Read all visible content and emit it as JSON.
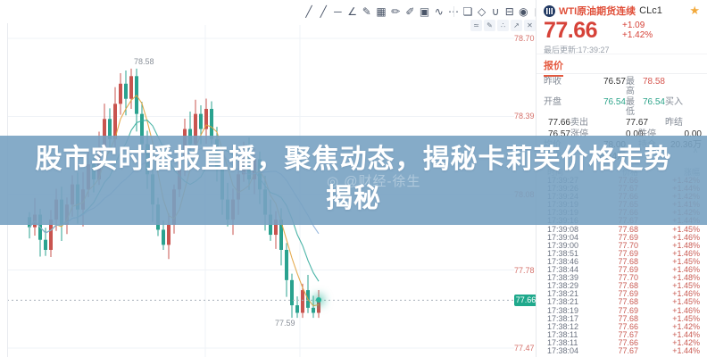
{
  "toolbar": {
    "drawing_tools": [
      {
        "name": "trend-line",
        "glyph": "╱"
      },
      {
        "name": "ray-line",
        "glyph": "╱"
      },
      {
        "name": "horizontal-line",
        "glyph": "─"
      },
      {
        "name": "angle-line",
        "glyph": "∠"
      },
      {
        "name": "pencil",
        "glyph": "✎"
      },
      {
        "name": "fib-grid",
        "glyph": "▦"
      },
      {
        "name": "brush",
        "glyph": "✏"
      },
      {
        "name": "marker",
        "glyph": "✐"
      },
      {
        "name": "image",
        "glyph": "▣"
      },
      {
        "name": "wave-pattern",
        "glyph": "∿"
      },
      {
        "name": "more-tools",
        "glyph": "⋯"
      }
    ],
    "tool_actions": [
      {
        "name": "edit",
        "glyph": "❏"
      },
      {
        "name": "eraser",
        "glyph": "◇"
      },
      {
        "name": "magnet",
        "glyph": "∪"
      },
      {
        "name": "lock",
        "glyph": "⊟"
      },
      {
        "name": "eye",
        "glyph": "◉"
      },
      {
        "name": "trash",
        "glyph": "▯"
      }
    ],
    "mini_tools": [
      {
        "name": "snapshot",
        "glyph": "≃"
      },
      {
        "name": "draw",
        "glyph": "✎"
      },
      {
        "name": "layers",
        "glyph": "∴"
      },
      {
        "name": "expand",
        "glyph": "↗"
      },
      {
        "name": "close",
        "glyph": "✕"
      }
    ]
  },
  "chart": {
    "high_label": "78.58",
    "low_label": "77.59",
    "current_price_label": "77.66",
    "axis_color": "#d4706a"
  },
  "chart_data": {
    "type": "candlestick",
    "symbol": "CLc1",
    "title": "WTI原油期货连续",
    "closes": [
      77.95,
      78.0,
      77.9,
      77.86,
      77.98,
      78.06,
      77.96,
      78.04,
      78.12,
      78.02,
      78.1,
      78.2,
      78.14,
      78.26,
      78.38,
      78.3,
      78.44,
      78.52,
      78.46,
      78.55,
      78.4,
      78.28,
      78.16,
      78.04,
      77.94,
      77.88,
      77.96,
      78.1,
      78.22,
      78.34,
      78.28,
      78.4,
      78.34,
      78.42,
      78.3,
      78.18,
      78.06,
      77.98,
      78.06,
      78.16,
      78.24,
      78.14,
      78.22,
      78.1,
      78.0,
      77.92,
      77.98,
      77.86,
      77.74,
      77.64,
      77.61,
      77.7,
      77.63,
      77.61,
      77.66
    ],
    "session_high": 78.58,
    "session_low": 77.59,
    "current": 77.66,
    "y_axis": {
      "ticks": [
        78.7,
        78.39,
        78.08,
        77.78,
        77.47
      ]
    },
    "up_color": "#c9544f",
    "down_color": "#2aa28f",
    "ma_series": [
      {
        "name": "ma5",
        "window": 5,
        "color": "#e2a23c"
      },
      {
        "name": "ma10",
        "window": 10,
        "color": "#38ad9e"
      },
      {
        "name": "ma20",
        "window": 20,
        "color": "#8fb3dc"
      }
    ],
    "grid": true
  },
  "banner": {
    "line1": "股市实时播报直播，聚焦动态，揭秘卡莉芙价格走势",
    "line2": "揭秘",
    "watermark": "◎ @财经-徐生",
    "background": "#78a2c2"
  },
  "quote_panel": {
    "header": {
      "name": "WTI原油期货连续",
      "code": "CLc1",
      "star_icon": "★"
    },
    "price": "77.66",
    "change": "+1.09",
    "change_pct": "+1.42%",
    "updated": "最后更新:17:39:27",
    "tab_label": "报价",
    "fields": [
      {
        "label": "昨收",
        "value": "76.57",
        "cls": ""
      },
      {
        "label": "最高",
        "value": "78.58",
        "cls": "q-red"
      },
      {
        "label": "开盘",
        "value": "76.54",
        "cls": "q-green"
      },
      {
        "label": "最低",
        "value": "76.54",
        "cls": "q-green"
      },
      {
        "label": "买入",
        "value": "77.66",
        "cls": ""
      },
      {
        "label": "卖出",
        "value": "77.67",
        "cls": ""
      },
      {
        "label": "昨结",
        "value": "76.57",
        "cls": ""
      },
      {
        "label": "涨停",
        "value": "0.00",
        "cls": ""
      },
      {
        "label": "跌停",
        "value": "0.00",
        "cls": ""
      },
      {
        "label": "均价",
        "value": "78.00",
        "cls": ""
      },
      {
        "label": "持仓",
        "value": "20.36万",
        "cls": ""
      },
      {
        "label": "成交",
        "value": "8.44万",
        "cls": ""
      }
    ],
    "ticks": {
      "collapse_icon": "∧",
      "columns": [
        "时间",
        "价格",
        "涨幅"
      ],
      "rows": [
        {
          "t": "17:39:27",
          "p": "77.66",
          "c": "+1.42%"
        },
        {
          "t": "17:39:26",
          "p": "77.67",
          "c": "+1.44%"
        },
        {
          "t": "17:39:24",
          "p": "77.66",
          "c": "+1.42%"
        },
        {
          "t": "17:39:19",
          "p": "77.65",
          "c": "+1.41%"
        },
        {
          "t": "17:39:19",
          "p": "77.66",
          "c": "+1.42%"
        },
        {
          "t": "17:39:16",
          "p": "77.67",
          "c": "+1.44%"
        },
        {
          "t": "17:39:08",
          "p": "77.68",
          "c": "+1.45%"
        },
        {
          "t": "17:39:04",
          "p": "77.69",
          "c": "+1.46%"
        },
        {
          "t": "17:39:00",
          "p": "77.70",
          "c": "+1.48%"
        },
        {
          "t": "17:38:51",
          "p": "77.69",
          "c": "+1.46%"
        },
        {
          "t": "17:38:46",
          "p": "77.68",
          "c": "+1.45%"
        },
        {
          "t": "17:38:44",
          "p": "77.69",
          "c": "+1.46%"
        },
        {
          "t": "17:38:39",
          "p": "77.70",
          "c": "+1.48%"
        },
        {
          "t": "17:38:29",
          "p": "77.68",
          "c": "+1.45%"
        },
        {
          "t": "17:38:21",
          "p": "77.69",
          "c": "+1.46%"
        },
        {
          "t": "17:38:21",
          "p": "77.68",
          "c": "+1.45%"
        },
        {
          "t": "17:38:19",
          "p": "77.69",
          "c": "+1.46%"
        },
        {
          "t": "17:38:17",
          "p": "77.68",
          "c": "+1.45%"
        },
        {
          "t": "17:38:12",
          "p": "77.66",
          "c": "+1.42%"
        },
        {
          "t": "17:38:11",
          "p": "77.67",
          "c": "+1.44%"
        },
        {
          "t": "17:38:11",
          "p": "77.66",
          "c": "+1.42%"
        },
        {
          "t": "17:38:04",
          "p": "77.67",
          "c": "+1.44%"
        }
      ]
    }
  }
}
